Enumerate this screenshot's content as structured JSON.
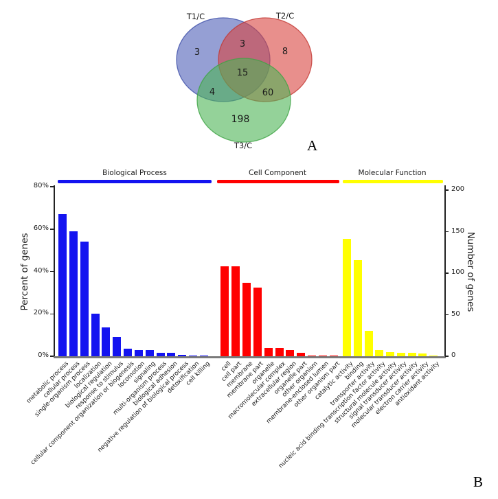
{
  "figure": {
    "panel_a_label": "A",
    "panel_b_label": "B"
  },
  "venn": {
    "set_labels": {
      "t1": "T1/C",
      "t2": "T2/C",
      "t3": "T3/C"
    },
    "counts": {
      "t1_only": "3",
      "t2_only": "8",
      "t3_only": "198",
      "t1_t2": "3",
      "t1_t3": "4",
      "t2_t3": "60",
      "all": "15"
    },
    "colors": {
      "t1_fill": "#4f5fb8",
      "t1_stroke": "#3c4da8",
      "t2_fill": "#d84440",
      "t2_stroke": "#c23732",
      "t3_fill": "#4db455",
      "t3_stroke": "#3da344"
    }
  },
  "chart_data": {
    "type": "bar",
    "ylabel_left": "Percent of genes",
    "ylabel_right": "Number of genes",
    "y_left_ticks": [
      "0%",
      "20%",
      "40%",
      "60%",
      "80%"
    ],
    "y_left_tick_values": [
      0,
      20,
      40,
      60,
      80
    ],
    "y_right_ticks": [
      "0",
      "50",
      "100",
      "150",
      "200"
    ],
    "y_right_tick_values": [
      0,
      50,
      100,
      150,
      200
    ],
    "ylim_left_percent": [
      0,
      80
    ],
    "ylim_right_count": [
      0,
      200
    ],
    "grid": false,
    "groups": [
      {
        "name": "Biological Process",
        "color": "#1414f0",
        "categories": [
          "metabolic process",
          "cellular process",
          "single-organism process",
          "localization",
          "biological regulation",
          "response to stimulus",
          "cellular component organization or biogenesis",
          "locomotion",
          "signaling",
          "multi-organism process",
          "biological adhesion",
          "negative regulation of biological process",
          "detoxification",
          "cell killing"
        ],
        "values_percent": [
          67,
          59,
          54,
          20,
          13.5,
          9,
          3.5,
          2.8,
          2.8,
          1.5,
          1.5,
          0.8,
          0.4,
          0.4
        ]
      },
      {
        "name": "Cell Component",
        "color": "#ff0000",
        "categories": [
          "cell",
          "cell part",
          "membrane",
          "membrane part",
          "organelle",
          "macromolecular complex",
          "extracellular region",
          "organelle part",
          "other organism",
          "membrane-enclosed lumen",
          "other organism part"
        ],
        "values_percent": [
          42.5,
          42.5,
          34.5,
          32.5,
          3.9,
          3.9,
          2.8,
          1.6,
          0.4,
          0.4,
          0.4
        ]
      },
      {
        "name": "Molecular Function",
        "color": "#ffff00",
        "categories": [
          "catalytic activity",
          "binding",
          "transporter activity",
          "nucleic acid binding transcription factor activity",
          "structural molecule activity",
          "signal transducer activity",
          "molecular transducer activity",
          "electron carrier activity",
          "antioxidant activity"
        ],
        "values_percent": [
          55.5,
          45.5,
          12,
          2.9,
          1.8,
          1.6,
          1.6,
          1.3,
          0.3
        ]
      }
    ]
  }
}
